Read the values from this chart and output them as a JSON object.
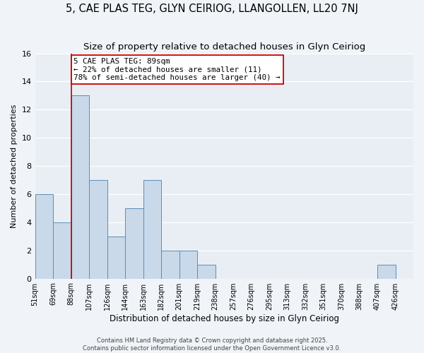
{
  "title": "5, CAE PLAS TEG, GLYN CEIRIOG, LLANGOLLEN, LL20 7NJ",
  "subtitle": "Size of property relative to detached houses in Glyn Ceiriog",
  "xlabel": "Distribution of detached houses by size in Glyn Ceiriog",
  "ylabel": "Number of detached properties",
  "bin_labels": [
    "51sqm",
    "69sqm",
    "88sqm",
    "107sqm",
    "126sqm",
    "144sqm",
    "163sqm",
    "182sqm",
    "201sqm",
    "219sqm",
    "238sqm",
    "257sqm",
    "276sqm",
    "295sqm",
    "313sqm",
    "332sqm",
    "351sqm",
    "370sqm",
    "388sqm",
    "407sqm",
    "426sqm"
  ],
  "counts": [
    6,
    4,
    13,
    7,
    3,
    5,
    7,
    2,
    2,
    1,
    0,
    0,
    0,
    0,
    0,
    0,
    0,
    0,
    0,
    1,
    0
  ],
  "bar_color": "#c9d9e9",
  "bar_edge_color": "#5b8db8",
  "property_bin_index": 2,
  "property_line_color": "#bb0000",
  "annotation_text": "5 CAE PLAS TEG: 89sqm\n← 22% of detached houses are smaller (11)\n78% of semi-detached houses are larger (40) →",
  "annotation_box_color": "#ffffff",
  "annotation_box_edge": "#cc0000",
  "ylim": [
    0,
    16
  ],
  "yticks": [
    0,
    2,
    4,
    6,
    8,
    10,
    12,
    14,
    16
  ],
  "background_color": "#f0f4f8",
  "plot_bg_color": "#e8eef4",
  "grid_color": "#ffffff",
  "footer_line1": "Contains HM Land Registry data © Crown copyright and database right 2025.",
  "footer_line2": "Contains public sector information licensed under the Open Government Licence v3.0.",
  "title_fontsize": 10.5,
  "subtitle_fontsize": 9.5,
  "num_bins": 21
}
